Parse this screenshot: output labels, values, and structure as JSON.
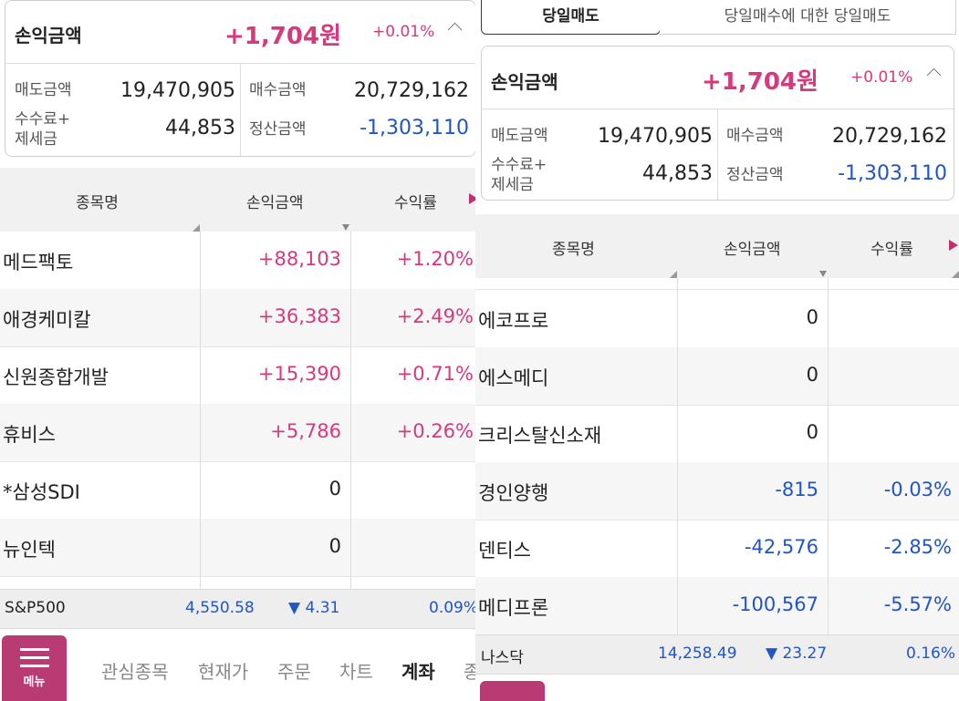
{
  "left": {
    "summary": {
      "title": "손익금액",
      "amount": "+1,704원",
      "pct": "+0.01%",
      "sell_label": "매도금액",
      "sell_value": "19,470,905",
      "buy_label": "매수금액",
      "buy_value": "20,729,162",
      "fee_label_1": "수수료+",
      "fee_label_2": "제세금",
      "fee_value": "44,853",
      "settle_label": "정산금액",
      "settle_value": "-1,303,110"
    },
    "table": {
      "headers": [
        "종목명",
        "손익금액",
        "수익률"
      ],
      "rows": [
        {
          "name": "메드팩토",
          "pl": "+88,103",
          "rate": "+1.20%"
        },
        {
          "name": "애경케미칼",
          "pl": "+36,383",
          "rate": "+2.49%"
        },
        {
          "name": "신원종합개발",
          "pl": "+15,390",
          "rate": "+0.71%"
        },
        {
          "name": "휴비스",
          "pl": "+5,786",
          "rate": "+0.26%"
        },
        {
          "name": "*삼성SDI",
          "pl": "0",
          "rate": ""
        },
        {
          "name": "뉴인텍",
          "pl": "0",
          "rate": ""
        }
      ]
    },
    "index": {
      "name": "S&P500",
      "value": "4,550.58",
      "change": "▼ 4.31",
      "pct": "0.09%"
    },
    "bottom_nav": {
      "menu_label": "메뉴",
      "items": [
        "관심종목",
        "현재가",
        "주문",
        "차트",
        "계좌",
        "종"
      ],
      "active": "계좌"
    }
  },
  "right": {
    "tabs": [
      "당일매도",
      "당일매수에 대한 당일매도"
    ],
    "summary": {
      "title": "손익금액",
      "amount": "+1,704원",
      "pct": "+0.01%",
      "sell_label": "매도금액",
      "sell_value": "19,470,905",
      "buy_label": "매수금액",
      "buy_value": "20,729,162",
      "fee_label_1": "수수료+",
      "fee_label_2": "제세금",
      "fee_value": "44,853",
      "settle_label": "정산금액",
      "settle_value": "-1,303,110"
    },
    "table": {
      "headers": [
        "종목명",
        "손익금액",
        "수익률"
      ],
      "rows": [
        {
          "name": "에코프로",
          "pl": "0",
          "rate": ""
        },
        {
          "name": "에스메디",
          "pl": "0",
          "rate": ""
        },
        {
          "name": "크리스탈신소재",
          "pl": "0",
          "rate": ""
        },
        {
          "name": "경인양행",
          "pl": "-815",
          "rate": "-0.03%"
        },
        {
          "name": "덴티스",
          "pl": "-42,576",
          "rate": "-2.85%"
        },
        {
          "name": "메디프론",
          "pl": "-100,567",
          "rate": "-5.57%"
        }
      ]
    },
    "index": {
      "name": "나스닥",
      "value": "14,258.49",
      "change": "▼ 23.27",
      "pct": "0.16%"
    }
  },
  "colors": {
    "positive": "#d63a7d",
    "negative": "#2255c4",
    "accent": "#b93b73"
  }
}
